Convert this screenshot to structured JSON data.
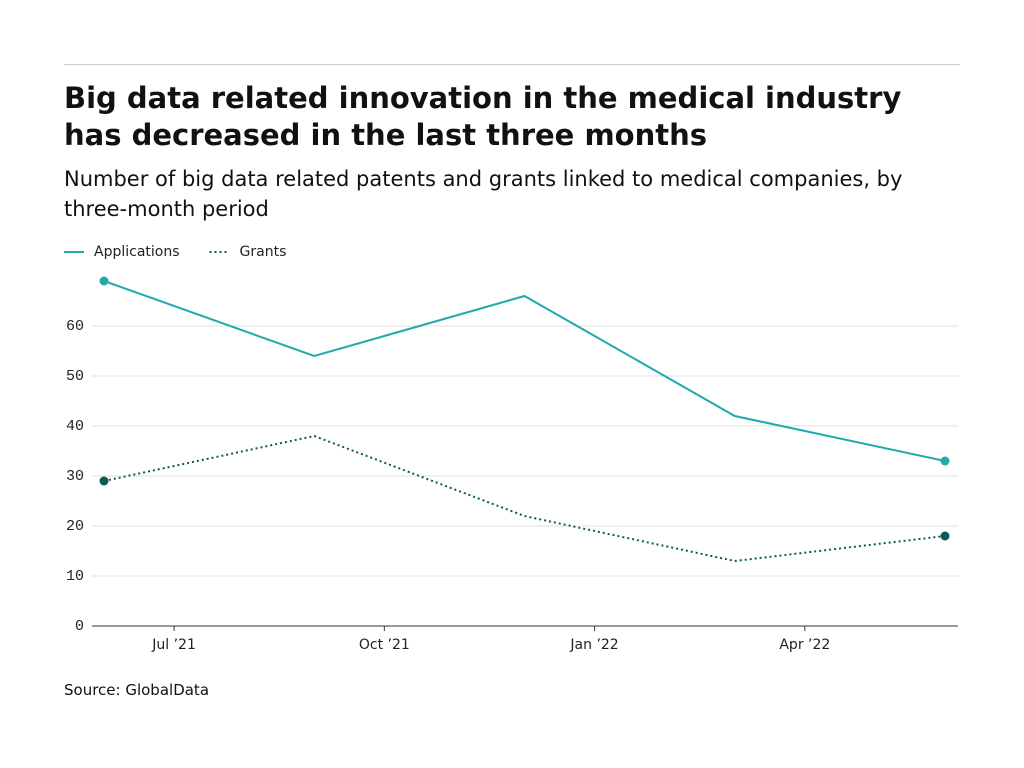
{
  "chart_data": {
    "type": "line",
    "title": "Big data related innovation in the medical industry has decreased in the last three months",
    "subtitle": "Number of big data related patents and grants linked to medical companies, by three-month period",
    "source": "Source: GlobalData",
    "x": [
      "2021-06",
      "2021-09",
      "2021-12",
      "2022-03",
      "2022-06"
    ],
    "series": [
      {
        "name": "Applications",
        "color": "#22a9ad",
        "style": "solid",
        "values": [
          69,
          54,
          66,
          42,
          33
        ]
      },
      {
        "name": "Grants",
        "color": "#0b5a58",
        "style": "dotted",
        "values": [
          29,
          38,
          22,
          13,
          18
        ]
      }
    ],
    "xticks": [
      {
        "value": "2021-07",
        "label": "Jul ’21"
      },
      {
        "value": "2021-10",
        "label": "Oct ’21"
      },
      {
        "value": "2022-01",
        "label": "Jan ’22"
      },
      {
        "value": "2022-04",
        "label": "Apr ’22"
      }
    ],
    "ylim": [
      0,
      70
    ],
    "yticks": [
      0,
      10,
      20,
      30,
      40,
      50,
      60
    ],
    "grid": true,
    "legend": "top-left"
  }
}
